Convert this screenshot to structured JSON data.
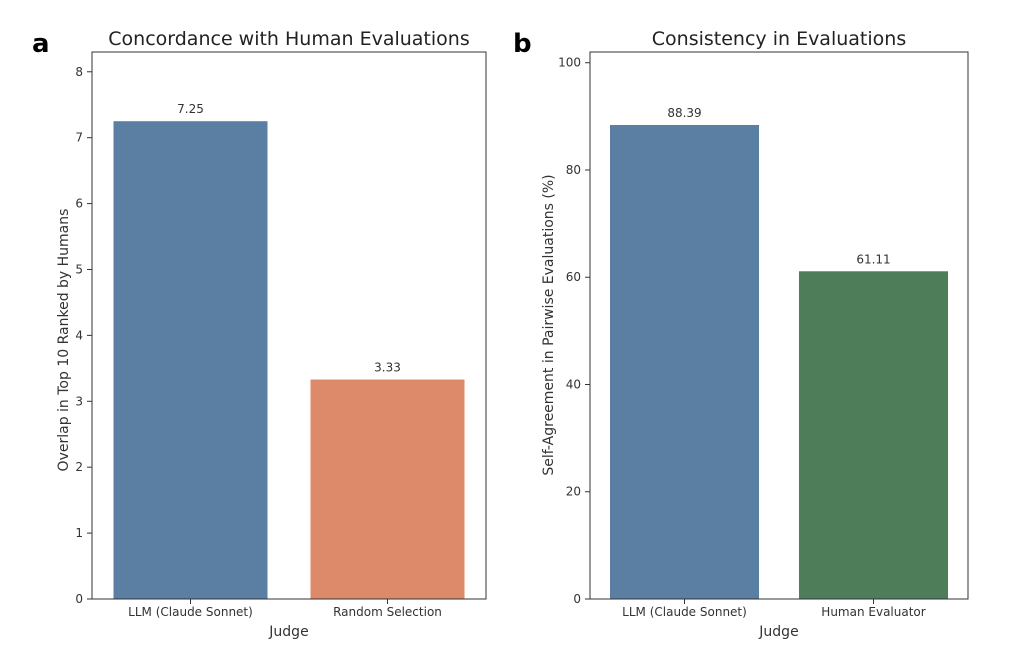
{
  "chart_data": [
    {
      "panel_letter": "a",
      "type": "bar",
      "title": "Concordance with Human Evaluations",
      "xlabel": "Judge",
      "ylabel": "Overlap in Top 10 Ranked by Humans",
      "categories": [
        "LLM (Claude Sonnet)",
        "Random Selection"
      ],
      "values": [
        7.25,
        3.33
      ],
      "value_labels": [
        "7.25",
        "3.33"
      ],
      "colors": [
        "#5b7ea3",
        "#dd8a6b"
      ],
      "ylim": [
        0,
        8.3
      ],
      "yticks": [
        0,
        1,
        2,
        3,
        4,
        5,
        6,
        7,
        8
      ],
      "grid": false,
      "legend": "none"
    },
    {
      "panel_letter": "b",
      "type": "bar",
      "title": "Consistency in Evaluations",
      "xlabel": "Judge",
      "ylabel": "Self-Agreement in Pairwise Evaluations (%)",
      "categories": [
        "LLM (Claude Sonnet)",
        "Human Evaluator"
      ],
      "values": [
        88.39,
        61.11
      ],
      "value_labels": [
        "88.39",
        "61.11"
      ],
      "colors": [
        "#5b7ea3",
        "#4e7d59"
      ],
      "ylim": [
        0,
        102
      ],
      "yticks": [
        0,
        20,
        40,
        60,
        80,
        100
      ],
      "grid": false,
      "legend": "none"
    }
  ]
}
